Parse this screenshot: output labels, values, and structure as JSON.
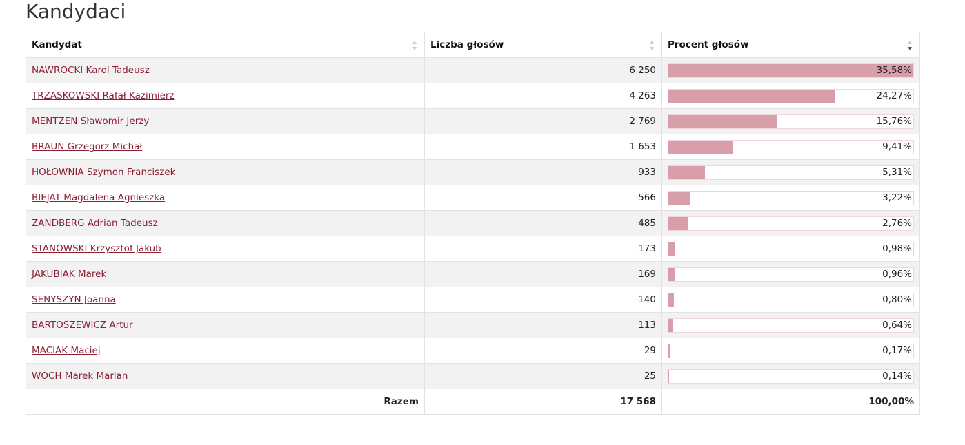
{
  "title": "Kandydaci",
  "headers": {
    "candidate": "Kandydat",
    "votes": "Liczba głosów",
    "percent": "Procent głosów"
  },
  "rows": [
    {
      "name": "NAWROCKI Karol Tadeusz",
      "votes": "6 250",
      "percent_label": "35,58%",
      "percent": 35.58
    },
    {
      "name": "TRZASKOWSKI Rafał Kazimierz",
      "votes": "4 263",
      "percent_label": "24,27%",
      "percent": 24.27
    },
    {
      "name": "MENTZEN Sławomir Jerzy",
      "votes": "2 769",
      "percent_label": "15,76%",
      "percent": 15.76
    },
    {
      "name": "BRAUN Grzegorz Michał",
      "votes": "1 653",
      "percent_label": "9,41%",
      "percent": 9.41
    },
    {
      "name": "HOŁOWNIA Szymon Franciszek",
      "votes": "933",
      "percent_label": "5,31%",
      "percent": 5.31
    },
    {
      "name": "BIEJAT Magdalena Agnieszka",
      "votes": "566",
      "percent_label": "3,22%",
      "percent": 3.22
    },
    {
      "name": "ZANDBERG Adrian Tadeusz",
      "votes": "485",
      "percent_label": "2,76%",
      "percent": 2.76
    },
    {
      "name": "STANOWSKI Krzysztof Jakub",
      "votes": "173",
      "percent_label": "0,98%",
      "percent": 0.98
    },
    {
      "name": "JAKUBIAK Marek",
      "votes": "169",
      "percent_label": "0,96%",
      "percent": 0.96
    },
    {
      "name": "SENYSZYN Joanna",
      "votes": "140",
      "percent_label": "0,80%",
      "percent": 0.8
    },
    {
      "name": "BARTOSZEWICZ Artur",
      "votes": "113",
      "percent_label": "0,64%",
      "percent": 0.64
    },
    {
      "name": "MACIAK Maciej",
      "votes": "29",
      "percent_label": "0,17%",
      "percent": 0.17
    },
    {
      "name": "WOCH Marek Marian",
      "votes": "25",
      "percent_label": "0,14%",
      "percent": 0.14
    }
  ],
  "footer": {
    "label": "Razem",
    "votes": "17 568",
    "percent": "100,00%"
  },
  "sort": {
    "active_column": "percent",
    "direction": "descending"
  },
  "colors": {
    "bar_fill": "#d89ea9",
    "link": "#8b1f35"
  }
}
